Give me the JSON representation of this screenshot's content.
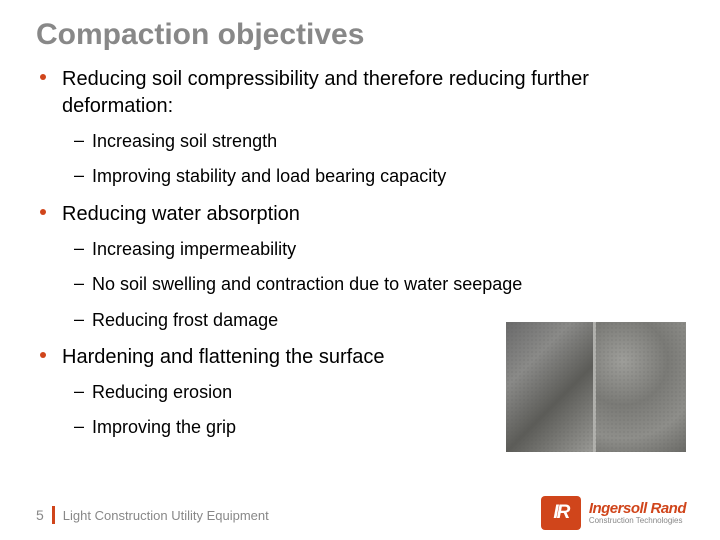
{
  "title": "Compaction objectives",
  "bullets": [
    {
      "text": "Reducing soil compressibility and therefore reducing further deformation:",
      "subs": [
        "Increasing soil strength",
        "Improving stability and load bearing capacity"
      ]
    },
    {
      "text": "Reducing water absorption",
      "subs": [
        "Increasing impermeability",
        "No soil swelling and contraction due to water seepage",
        "Reducing frost damage"
      ]
    },
    {
      "text": "Hardening and flattening the surface",
      "subs": [
        "Reducing erosion",
        "Improving the grip"
      ]
    }
  ],
  "footer": {
    "page": "5",
    "text": "Light Construction Utility Equipment"
  },
  "logo": {
    "mark": "IR",
    "brand": "Ingersoll Rand",
    "tag": "Construction Technologies"
  },
  "colors": {
    "title": "#888888",
    "accent": "#d0451b",
    "body": "#000000",
    "footer": "#888888"
  }
}
